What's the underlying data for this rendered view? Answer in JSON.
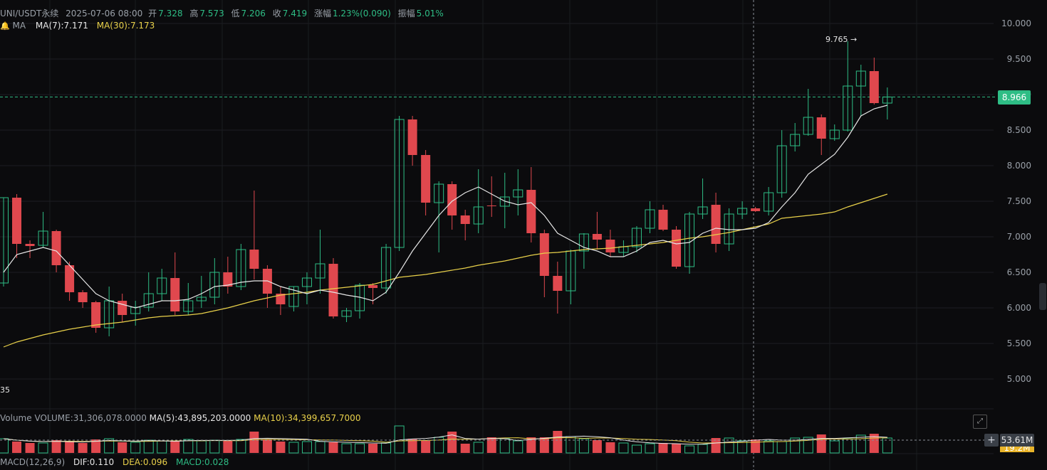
{
  "header": {
    "symbol": "UNI/USDT永续",
    "datetime": "2025-07-06 08:00",
    "open_label": "开",
    "open": "7.328",
    "high_label": "高",
    "high": "7.573",
    "low_label": "低",
    "low": "7.206",
    "close_label": "收",
    "close": "7.419",
    "change_label": "涨幅",
    "change": "1.23%(0.090)",
    "amplitude_label": "振幅",
    "amplitude": "5.01%"
  },
  "ma": {
    "label": "MA",
    "ma7": "MA(7):7.171",
    "ma30": "MA(30):7.173"
  },
  "volume": {
    "label": "Volume",
    "value": "VOLUME:31,306,078.0000",
    "ma5": "MA(5):43,895,203.0000",
    "ma10": "MA(10):34,399,657.7000"
  },
  "macd": {
    "label": "MACD(12,26,9)",
    "dif": "DIF:0.110",
    "dea": "DEA:0.096",
    "macd": "MACD:0.028"
  },
  "current_price": "8.966",
  "volume_tag": "53.61M",
  "volume_tag2": "19.2M",
  "max_label": "9.765 →",
  "min_label": "35",
  "colors": {
    "up": "#2ebd85",
    "down": "#e0484e",
    "ma7": "#e6e6e6",
    "ma30": "#e9d14a",
    "bg": "#0b0b0d"
  },
  "chart_data": {
    "type": "candlestick",
    "y_ticks": [
      "10.000",
      "9.500",
      "9.000",
      "8.500",
      "8.000",
      "7.500",
      "7.000",
      "6.500",
      "6.000",
      "5.500",
      "5.000"
    ],
    "ylim": [
      4.5,
      10.0
    ],
    "candles": [
      {
        "o": 6.35,
        "h": 7.55,
        "l": 6.3,
        "c": 7.55
      },
      {
        "o": 7.55,
        "h": 7.6,
        "l": 6.7,
        "c": 6.9
      },
      {
        "o": 6.9,
        "h": 6.95,
        "l": 6.7,
        "c": 6.87
      },
      {
        "o": 6.88,
        "h": 7.35,
        "l": 6.85,
        "c": 7.08
      },
      {
        "o": 7.08,
        "h": 7.1,
        "l": 6.5,
        "c": 6.6
      },
      {
        "o": 6.6,
        "h": 6.65,
        "l": 6.1,
        "c": 6.22
      },
      {
        "o": 6.22,
        "h": 6.25,
        "l": 6.0,
        "c": 6.08
      },
      {
        "o": 6.08,
        "h": 6.1,
        "l": 5.65,
        "c": 5.72
      },
      {
        "o": 5.72,
        "h": 6.3,
        "l": 5.6,
        "c": 6.1
      },
      {
        "o": 6.1,
        "h": 6.2,
        "l": 5.8,
        "c": 5.9
      },
      {
        "o": 5.92,
        "h": 6.1,
        "l": 5.75,
        "c": 6.01
      },
      {
        "o": 6.01,
        "h": 6.5,
        "l": 5.95,
        "c": 6.2
      },
      {
        "o": 6.2,
        "h": 6.55,
        "l": 6.1,
        "c": 6.42
      },
      {
        "o": 6.42,
        "h": 6.78,
        "l": 5.9,
        "c": 5.95
      },
      {
        "o": 5.95,
        "h": 6.35,
        "l": 5.9,
        "c": 6.1
      },
      {
        "o": 6.1,
        "h": 6.45,
        "l": 6.0,
        "c": 6.15
      },
      {
        "o": 6.15,
        "h": 6.7,
        "l": 6.05,
        "c": 6.5
      },
      {
        "o": 6.5,
        "h": 6.72,
        "l": 6.2,
        "c": 6.3
      },
      {
        "o": 6.3,
        "h": 6.9,
        "l": 6.25,
        "c": 6.82
      },
      {
        "o": 6.82,
        "h": 7.65,
        "l": 6.4,
        "c": 6.55
      },
      {
        "o": 6.55,
        "h": 6.6,
        "l": 6.0,
        "c": 6.2
      },
      {
        "o": 6.2,
        "h": 6.3,
        "l": 5.9,
        "c": 6.05
      },
      {
        "o": 6.02,
        "h": 6.3,
        "l": 5.95,
        "c": 6.3
      },
      {
        "o": 6.3,
        "h": 6.5,
        "l": 6.05,
        "c": 6.42
      },
      {
        "o": 6.42,
        "h": 7.1,
        "l": 6.2,
        "c": 6.62
      },
      {
        "o": 6.62,
        "h": 6.7,
        "l": 5.85,
        "c": 5.88
      },
      {
        "o": 5.88,
        "h": 6.0,
        "l": 5.8,
        "c": 5.96
      },
      {
        "o": 5.96,
        "h": 6.35,
        "l": 5.85,
        "c": 6.32
      },
      {
        "o": 6.32,
        "h": 6.35,
        "l": 6.05,
        "c": 6.28
      },
      {
        "o": 6.28,
        "h": 6.9,
        "l": 6.2,
        "c": 6.85
      },
      {
        "o": 6.85,
        "h": 8.7,
        "l": 6.8,
        "c": 8.65
      },
      {
        "o": 8.65,
        "h": 8.7,
        "l": 8.0,
        "c": 8.15
      },
      {
        "o": 8.15,
        "h": 8.22,
        "l": 7.3,
        "c": 7.48
      },
      {
        "o": 7.48,
        "h": 7.78,
        "l": 6.78,
        "c": 7.74
      },
      {
        "o": 7.74,
        "h": 7.78,
        "l": 7.1,
        "c": 7.3
      },
      {
        "o": 7.3,
        "h": 7.38,
        "l": 6.95,
        "c": 7.18
      },
      {
        "o": 7.18,
        "h": 7.95,
        "l": 7.05,
        "c": 7.42
      },
      {
        "o": 7.44,
        "h": 7.85,
        "l": 7.28,
        "c": 7.43
      },
      {
        "o": 7.43,
        "h": 7.9,
        "l": 7.12,
        "c": 7.56
      },
      {
        "o": 7.56,
        "h": 7.95,
        "l": 7.3,
        "c": 7.66
      },
      {
        "o": 7.66,
        "h": 7.98,
        "l": 6.92,
        "c": 7.05
      },
      {
        "o": 7.05,
        "h": 7.1,
        "l": 6.15,
        "c": 6.45
      },
      {
        "o": 6.45,
        "h": 6.65,
        "l": 5.92,
        "c": 6.24
      },
      {
        "o": 6.24,
        "h": 6.82,
        "l": 6.05,
        "c": 6.8
      },
      {
        "o": 6.8,
        "h": 7.05,
        "l": 6.55,
        "c": 7.04
      },
      {
        "o": 7.04,
        "h": 7.35,
        "l": 6.82,
        "c": 6.96
      },
      {
        "o": 6.96,
        "h": 7.1,
        "l": 6.72,
        "c": 6.78
      },
      {
        "o": 6.78,
        "h": 6.95,
        "l": 6.72,
        "c": 6.86
      },
      {
        "o": 6.86,
        "h": 7.15,
        "l": 6.78,
        "c": 7.12
      },
      {
        "o": 7.12,
        "h": 7.5,
        "l": 7.05,
        "c": 7.38
      },
      {
        "o": 7.38,
        "h": 7.45,
        "l": 7.08,
        "c": 7.1
      },
      {
        "o": 7.1,
        "h": 7.15,
        "l": 6.55,
        "c": 6.58
      },
      {
        "o": 6.58,
        "h": 7.35,
        "l": 6.48,
        "c": 7.32
      },
      {
        "o": 7.32,
        "h": 7.82,
        "l": 7.25,
        "c": 7.42
      },
      {
        "o": 7.45,
        "h": 7.62,
        "l": 6.78,
        "c": 6.9
      },
      {
        "o": 6.9,
        "h": 7.4,
        "l": 6.8,
        "c": 7.32
      },
      {
        "o": 7.32,
        "h": 7.5,
        "l": 7.25,
        "c": 7.4
      },
      {
        "o": 7.4,
        "h": 7.42,
        "l": 7.35,
        "c": 7.36
      },
      {
        "o": 7.36,
        "h": 7.7,
        "l": 7.3,
        "c": 7.62
      },
      {
        "o": 7.62,
        "h": 8.5,
        "l": 7.55,
        "c": 8.28
      },
      {
        "o": 8.28,
        "h": 8.6,
        "l": 8.2,
        "c": 8.44
      },
      {
        "o": 8.44,
        "h": 9.08,
        "l": 8.42,
        "c": 8.68
      },
      {
        "o": 8.68,
        "h": 8.72,
        "l": 8.15,
        "c": 8.38
      },
      {
        "o": 8.38,
        "h": 8.58,
        "l": 8.35,
        "c": 8.5
      },
      {
        "o": 8.5,
        "h": 9.75,
        "l": 8.48,
        "c": 9.12
      },
      {
        "o": 9.12,
        "h": 9.42,
        "l": 8.7,
        "c": 9.33
      },
      {
        "o": 9.33,
        "h": 9.52,
        "l": 8.86,
        "c": 8.88
      },
      {
        "o": 8.88,
        "h": 9.1,
        "l": 8.65,
        "c": 8.966
      }
    ],
    "ma7": [
      6.5,
      6.75,
      6.8,
      6.85,
      6.8,
      6.6,
      6.4,
      6.2,
      6.1,
      6.05,
      6.0,
      6.05,
      6.1,
      6.1,
      6.12,
      6.2,
      6.3,
      6.32,
      6.36,
      6.38,
      6.38,
      6.3,
      6.25,
      6.2,
      6.25,
      6.22,
      6.18,
      6.15,
      6.1,
      6.22,
      6.5,
      6.8,
      7.05,
      7.3,
      7.5,
      7.62,
      7.7,
      7.6,
      7.5,
      7.45,
      7.48,
      7.3,
      7.05,
      6.95,
      6.85,
      6.8,
      6.72,
      6.72,
      6.8,
      6.92,
      6.95,
      6.9,
      6.92,
      7.05,
      7.12,
      7.1,
      7.1,
      7.12,
      7.2,
      7.42,
      7.62,
      7.88,
      8.02,
      8.16,
      8.4,
      8.7,
      8.8,
      8.85
    ],
    "ma30": [
      5.45,
      5.52,
      5.57,
      5.62,
      5.66,
      5.7,
      5.73,
      5.76,
      5.78,
      5.8,
      5.83,
      5.86,
      5.88,
      5.89,
      5.9,
      5.92,
      5.96,
      6.0,
      6.05,
      6.1,
      6.14,
      6.18,
      6.2,
      6.22,
      6.25,
      6.27,
      6.29,
      6.31,
      6.33,
      6.38,
      6.43,
      6.45,
      6.47,
      6.5,
      6.53,
      6.56,
      6.6,
      6.63,
      6.66,
      6.7,
      6.74,
      6.77,
      6.78,
      6.8,
      6.82,
      6.83,
      6.84,
      6.86,
      6.88,
      6.9,
      6.92,
      6.95,
      6.98,
      7.0,
      7.03,
      7.06,
      7.1,
      7.14,
      7.18,
      7.26,
      7.28,
      7.3,
      7.32,
      7.35,
      7.42,
      7.48,
      7.54,
      7.6
    ],
    "volume": [
      20,
      16,
      14,
      14,
      18,
      17,
      14,
      19,
      20,
      15,
      15,
      18,
      17,
      17,
      19,
      17,
      18,
      17,
      19,
      30,
      19,
      16,
      15,
      16,
      16,
      15,
      13,
      13,
      13,
      14,
      38,
      20,
      17,
      22,
      30,
      13,
      15,
      22,
      20,
      17,
      22,
      22,
      31,
      23,
      20,
      18,
      15,
      14,
      11,
      13,
      14,
      13,
      10,
      12,
      21,
      21,
      17,
      19,
      17,
      16,
      21,
      22,
      26,
      17,
      20,
      25,
      27,
      21
    ]
  }
}
